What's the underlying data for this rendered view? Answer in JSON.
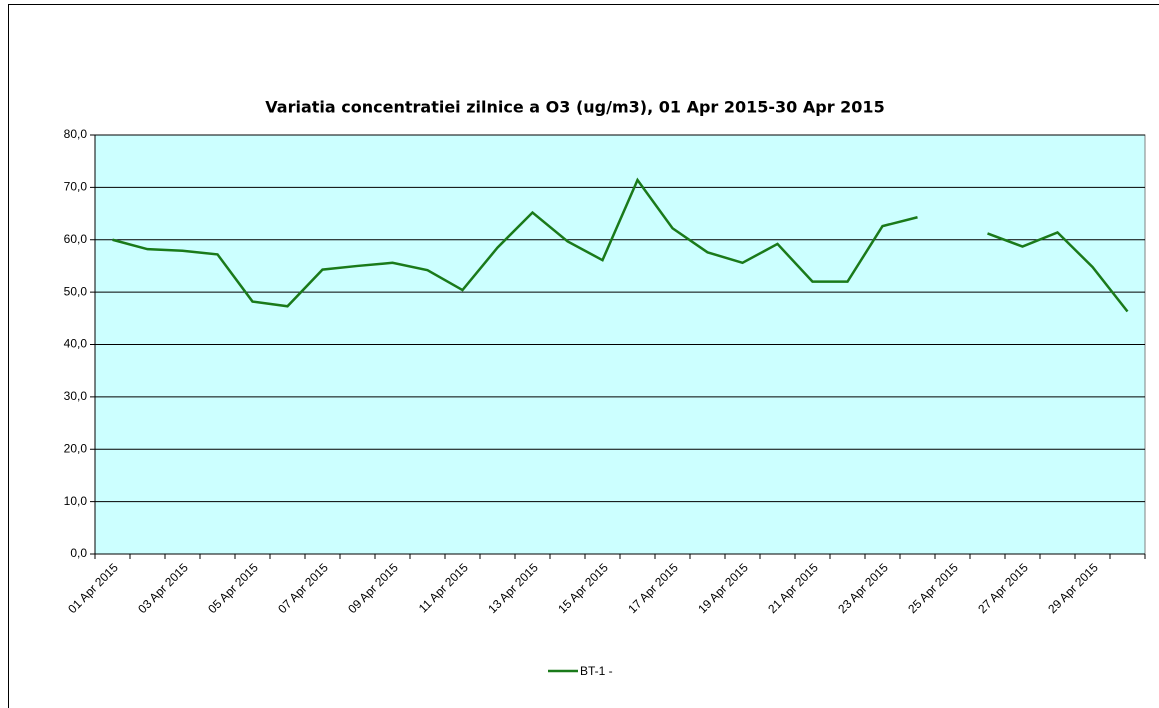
{
  "chart_data": {
    "type": "line",
    "title": "Variatia concentratiei zilnice a  O3 (ug/m3),  01 Apr 2015-30 Apr 2015",
    "categories": [
      "01 Apr 2015",
      null,
      "03 Apr 2015",
      null,
      "05 Apr 2015",
      null,
      "07 Apr 2015",
      null,
      "09 Apr 2015",
      null,
      "11 Apr 2015",
      null,
      "13 Apr 2015",
      null,
      "15 Apr 2015",
      null,
      "17 Apr 2015",
      null,
      "19 Apr 2015",
      null,
      "21 Apr 2015",
      null,
      "23 Apr 2015",
      null,
      "25 Apr 2015",
      null,
      "27 Apr 2015",
      null,
      "29 Apr 2015",
      null
    ],
    "series": [
      {
        "name": "BT-1 -",
        "color": "#1a7a1a",
        "values": [
          60.0,
          58.2,
          57.9,
          57.2,
          48.2,
          47.3,
          54.3,
          55.0,
          55.6,
          54.2,
          50.4,
          58.5,
          65.2,
          59.7,
          56.1,
          71.4,
          62.2,
          57.6,
          55.6,
          59.2,
          52.0,
          52.0,
          62.6,
          64.3,
          null,
          61.2,
          58.7,
          61.4,
          54.8,
          46.3
        ]
      }
    ],
    "ylim": [
      0,
      80
    ],
    "yticks": [
      {
        "value": 0,
        "label": "0,0"
      },
      {
        "value": 10,
        "label": "10,0"
      },
      {
        "value": 20,
        "label": "20,0"
      },
      {
        "value": 30,
        "label": "30,0"
      },
      {
        "value": 40,
        "label": "40,0"
      },
      {
        "value": 50,
        "label": "50,0"
      },
      {
        "value": 60,
        "label": "60,0"
      },
      {
        "value": 70,
        "label": "70,0"
      },
      {
        "value": 80,
        "label": "80,0"
      }
    ],
    "grid": true,
    "legend": "bottom",
    "plot_background": "#ccffff",
    "title_color": "#3366ff"
  }
}
